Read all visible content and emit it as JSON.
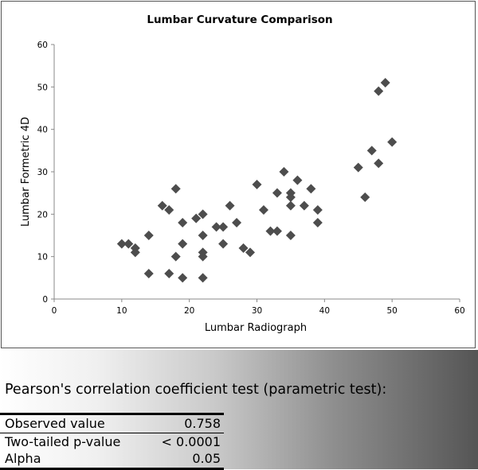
{
  "chart_data": {
    "type": "scatter",
    "title": "Lumbar Curvature Comparison",
    "xlabel": "Lumbar Radiograph",
    "ylabel": "Lumbar Formetric 4D",
    "xlim": [
      0,
      60
    ],
    "ylim": [
      0,
      60
    ],
    "x_ticks": [
      0,
      10,
      20,
      30,
      40,
      50,
      60
    ],
    "y_ticks": [
      0,
      10,
      20,
      30,
      40,
      50,
      60
    ],
    "grid": false,
    "legend": "none",
    "marker": "diamond",
    "marker_color": "#4d4d4d",
    "points": [
      [
        10,
        13
      ],
      [
        11,
        13
      ],
      [
        12,
        12
      ],
      [
        12,
        11
      ],
      [
        14,
        15
      ],
      [
        14,
        6
      ],
      [
        16,
        22
      ],
      [
        17,
        21
      ],
      [
        17,
        6
      ],
      [
        18,
        26
      ],
      [
        18,
        10
      ],
      [
        19,
        18
      ],
      [
        19,
        13
      ],
      [
        19,
        5
      ],
      [
        21,
        19
      ],
      [
        22,
        20
      ],
      [
        22,
        15
      ],
      [
        22,
        11
      ],
      [
        22,
        10
      ],
      [
        22,
        5
      ],
      [
        24,
        17
      ],
      [
        25,
        17
      ],
      [
        25,
        13
      ],
      [
        26,
        22
      ],
      [
        27,
        18
      ],
      [
        28,
        12
      ],
      [
        29,
        11
      ],
      [
        30,
        27
      ],
      [
        31,
        21
      ],
      [
        32,
        16
      ],
      [
        33,
        25
      ],
      [
        33,
        16
      ],
      [
        34,
        30
      ],
      [
        35,
        25
      ],
      [
        35,
        24
      ],
      [
        35,
        22
      ],
      [
        35,
        15
      ],
      [
        36,
        28
      ],
      [
        37,
        22
      ],
      [
        38,
        26
      ],
      [
        39,
        21
      ],
      [
        39,
        18
      ],
      [
        45,
        31
      ],
      [
        46,
        24
      ],
      [
        47,
        35
      ],
      [
        48,
        49
      ],
      [
        48,
        32
      ],
      [
        49,
        51
      ],
      [
        50,
        37
      ]
    ]
  },
  "stats": {
    "title": "Pearson's correlation coefficient test (parametric test):",
    "rows": [
      {
        "label": "Observed value",
        "value": "0.758"
      },
      {
        "label": "Two-tailed p-value",
        "value": "< 0.0001"
      },
      {
        "label": "Alpha",
        "value": "0.05"
      }
    ]
  }
}
